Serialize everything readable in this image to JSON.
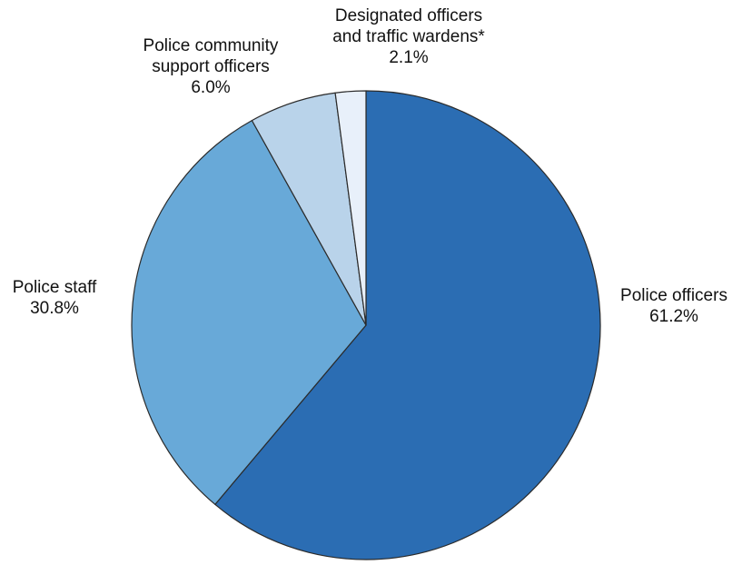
{
  "chart_data": {
    "type": "pie",
    "title": "",
    "start_angle_deg": 0,
    "direction": "clockwise",
    "legend": "none",
    "slices": [
      {
        "key": "police-officers",
        "label_lines": [
          "Police officers"
        ],
        "value": 61.2,
        "value_label": "61.2%",
        "color": "#2b6db3"
      },
      {
        "key": "police-staff",
        "label_lines": [
          "Police staff"
        ],
        "value": 30.8,
        "value_label": "30.8%",
        "color": "#68a9d8"
      },
      {
        "key": "pcso",
        "label_lines": [
          "Police community",
          "support officers"
        ],
        "value": 6.0,
        "value_label": "6.0%",
        "color": "#b9d3ea"
      },
      {
        "key": "designated-officers",
        "label_lines": [
          "Designated officers",
          "and traffic wardens*"
        ],
        "value": 2.1,
        "value_label": "2.1%",
        "color": "#e8f0fa"
      }
    ]
  }
}
